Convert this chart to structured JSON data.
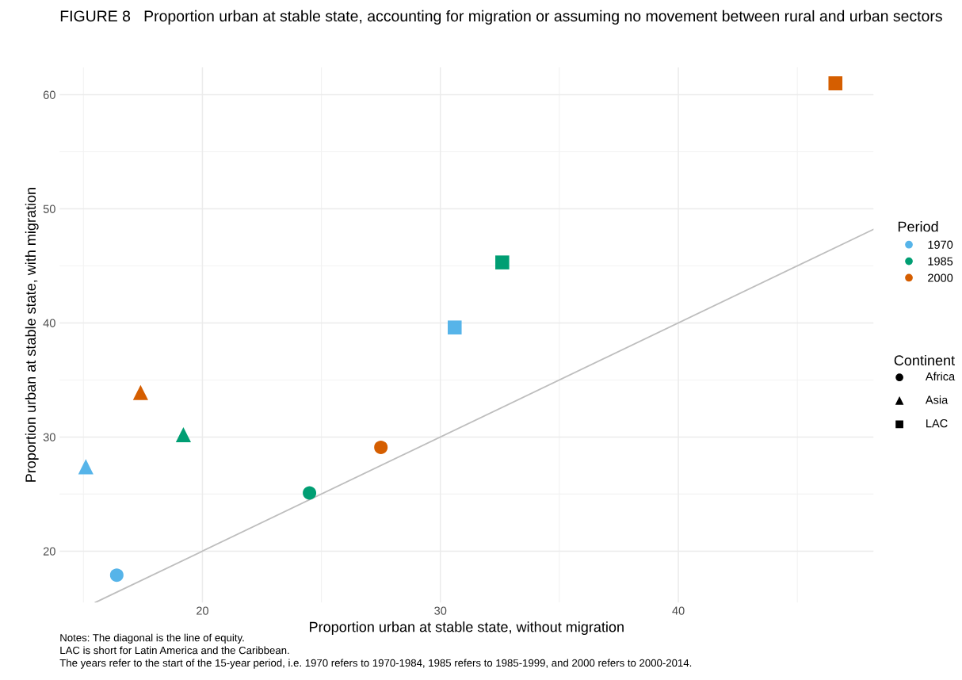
{
  "chart_data": {
    "type": "scatter",
    "title": "FIGURE 8   Proportion urban at stable state, accounting for migration or assuming no movement between rural and urban sectors",
    "xlabel": "Proportion urban at stable state, without migration",
    "ylabel": "Proportion urban at stable state, with migration",
    "legend_title": [
      "Period",
      "Continent"
    ],
    "series": [
      {
        "type": "line",
        "color": "#bebebe",
        "x": [
          15.5,
          48.2
        ],
        "values": [
          15.5,
          48.2
        ]
      },
      {
        "name": "1970",
        "color": "#56b4e9",
        "marker": [
          "circle",
          "triangle",
          "square"
        ],
        "x": [
          16.4,
          15.1,
          30.6
        ],
        "values": [
          17.9,
          27.4,
          39.6
        ]
      },
      {
        "name": "1985",
        "color": "#009e73",
        "marker": [
          "circle",
          "triangle",
          "square"
        ],
        "x": [
          24.5,
          19.2,
          32.6
        ],
        "values": [
          25.1,
          30.2,
          45.3
        ]
      },
      {
        "name": "2000",
        "color": "#d55e00",
        "marker": [
          "circle",
          "triangle",
          "square"
        ],
        "x": [
          27.5,
          17.4,
          46.6
        ],
        "values": [
          29.1,
          33.9,
          61.0
        ]
      }
    ],
    "xlim": [
      14.0,
      48.2
    ],
    "ylim": [
      15.5,
      62.4
    ],
    "xticks": [
      20,
      30,
      40
    ],
    "yticks": [
      20,
      30,
      40,
      50,
      60
    ],
    "grid": true,
    "legend": "right",
    "annotations": [
      "Africa",
      "Asia",
      "LAC",
      "Notes: The diagonal is the line of equity.",
      "LAC is short for Latin America and the Caribbean.",
      "The years refer to the start of the 15-year period, i.e. 1970 refers to 1970-1984, 1985 refers to 1985-1999, and 2000 refers to 2000-2014."
    ]
  }
}
